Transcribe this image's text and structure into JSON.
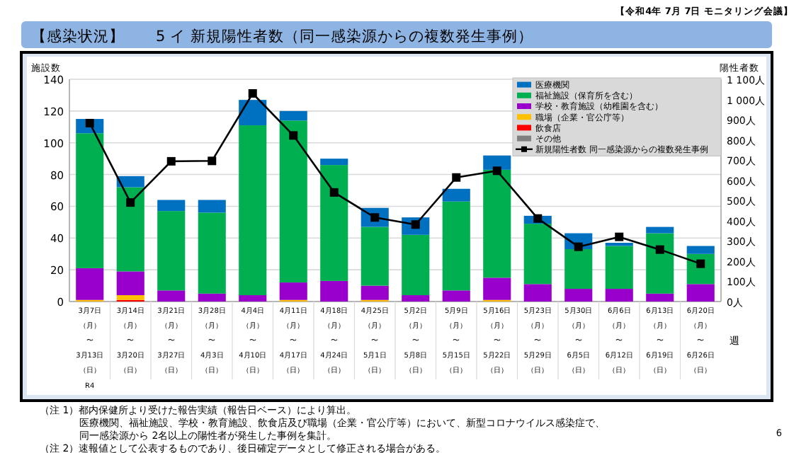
{
  "chart_data": {
    "type": "bar",
    "stacked": true,
    "title": "【感染状況】　　5 イ 新規陽性者数（同一感染源からの複数発生事例）",
    "subtitle": "【令和4年 7月 7日 モニタリング会議】",
    "ylabel": "施設数",
    "y2label": "陽性者数",
    "xlabel": "週",
    "categories": [
      "3月7日（月）〜3月13日（日）",
      "3月14日（月）〜3月20日（日）",
      "3月21日（月）〜3月27日（日）",
      "3月28日（月）〜4月3日（日）",
      "4月4日（月）〜4月10日（日）",
      "4月11日（月）〜4月17日（日）",
      "4月18日（月）〜4月24日（日）",
      "4月25日（月）〜5月1日（日）",
      "5月2日（月）〜5月8日（日）",
      "5月9日（月）〜5月15日（日）",
      "5月16日（月）〜5月22日（日）",
      "5月23日（月）〜5月29日（日）",
      "5月30日（月）〜6月5日（日）",
      "6月6日（月）〜6月12日（日）",
      "6月13日（月）〜6月19日（日）",
      "6月20日（月）〜6月26日（日）"
    ],
    "series": [
      {
        "name": "その他",
        "color": "#808080",
        "values": [
          0,
          0,
          0,
          0,
          0,
          0,
          0,
          0,
          0,
          0,
          0,
          0,
          0,
          0,
          0,
          0
        ]
      },
      {
        "name": "飲食店",
        "color": "#ff0000",
        "values": [
          0,
          1,
          0,
          0,
          0,
          0,
          0,
          0,
          0,
          0,
          0,
          0,
          0,
          0,
          0,
          0
        ]
      },
      {
        "name": "職場（企業・官公庁等）",
        "color": "#ffc000",
        "values": [
          1,
          3,
          0,
          0,
          0,
          1,
          0,
          1,
          0,
          0,
          1,
          0,
          0,
          0,
          0,
          0
        ]
      },
      {
        "name": "学校・教育施設（幼稚園を含む）",
        "color": "#9900cc",
        "values": [
          20,
          15,
          7,
          5,
          4,
          11,
          13,
          9,
          4,
          7,
          14,
          11,
          8,
          8,
          5,
          11
        ]
      },
      {
        "name": "福祉施設（保育所を含む）",
        "color": "#00b050",
        "values": [
          85,
          53,
          50,
          51,
          107,
          102,
          73,
          37,
          38,
          56,
          68,
          38,
          25,
          27,
          38,
          19
        ]
      },
      {
        "name": "医療機関",
        "color": "#0070c0",
        "values": [
          9,
          7,
          7,
          8,
          16,
          6,
          4,
          12,
          11,
          8,
          9,
          5,
          10,
          2,
          4,
          5
        ]
      },
      {
        "name": "新規陽性者数 同一感染源からの複数発生事例",
        "type": "line",
        "axis": "y2",
        "marker": "square",
        "color": "#000000",
        "values": [
          883,
          490,
          694,
          696,
          1030,
          822,
          540,
          416,
          381,
          614,
          647,
          411,
          271,
          320,
          257,
          187
        ]
      }
    ],
    "ylim": [
      0,
      140
    ],
    "yticks": [
      0,
      20,
      40,
      60,
      80,
      100,
      120,
      140
    ],
    "y2lim": [
      0,
      1100
    ],
    "y2ticks": [
      {
        "value": 0,
        "label": "0人"
      },
      {
        "value": 100,
        "label": "100人"
      },
      {
        "value": 200,
        "label": "200人"
      },
      {
        "value": 300,
        "label": "300人"
      },
      {
        "value": 400,
        "label": "400人"
      },
      {
        "value": 500,
        "label": "500人"
      },
      {
        "value": 600,
        "label": "600人"
      },
      {
        "value": 700,
        "label": "700人"
      },
      {
        "value": 800,
        "label": "800人"
      },
      {
        "value": 900,
        "label": "900人"
      },
      {
        "value": 1000,
        "label": "1 000人"
      },
      {
        "value": 1100,
        "label": "1 100人"
      }
    ],
    "grid": "y",
    "legend": "top right",
    "annotations": [
      "R4",
      "（注 1）都内保健所より受けた報告実績（報告日ベース）により算出。",
      "医療機関、福祉施設、学校・教育施設、飲食店及び職場（企業・官公庁等）において、新型コロナウイルス感染症で、",
      "同一感染源から 2名以上の陽性者が発生した事例を集計。",
      "（注 2）速報値として公表するものであり、後日確定データとして修正される場合がある。",
      "6"
    ]
  }
}
